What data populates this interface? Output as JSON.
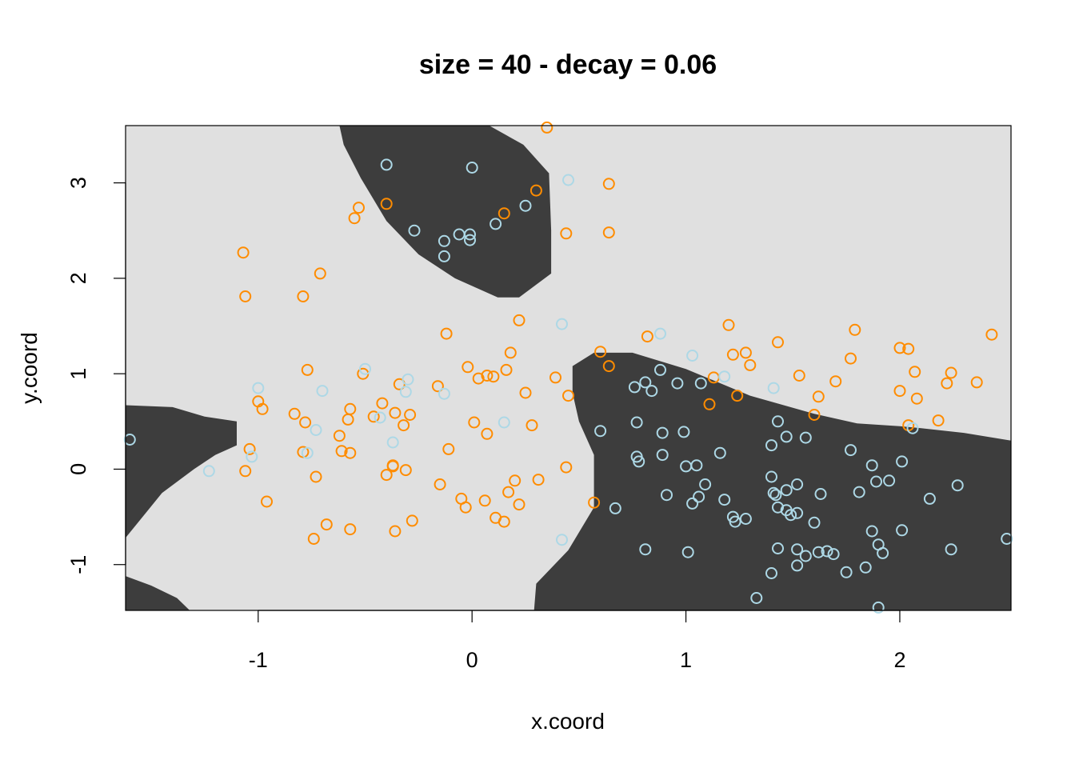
{
  "chart_data": {
    "type": "scatter",
    "title": "size = 40 - decay = 0.06",
    "xlabel": "x.coord",
    "ylabel": "y.coord",
    "xlim": [
      -1.62,
      2.52
    ],
    "ylim": [
      -1.48,
      3.6
    ],
    "xticks": [
      -1,
      0,
      1,
      2
    ],
    "yticks": [
      -1,
      0,
      1,
      2,
      3
    ],
    "xtick_labels": [
      "-1",
      "0",
      "1",
      "2"
    ],
    "ytick_labels": [
      "-1",
      "0",
      "1",
      "2",
      "3"
    ],
    "grid": false,
    "legend": "none",
    "colors": {
      "region_light": "#e0e0e0",
      "region_dark": "#3d3d3d",
      "points_orange": "#ff8c00",
      "points_blue": "#add8e6"
    },
    "regions": [
      {
        "color": "region_dark",
        "polygon": [
          [
            -0.62,
            3.6
          ],
          [
            -0.25,
            3.6
          ],
          [
            0.08,
            3.6
          ],
          [
            0.24,
            3.4
          ],
          [
            0.36,
            3.1
          ],
          [
            0.37,
            2.5
          ],
          [
            0.37,
            2.05
          ],
          [
            0.22,
            1.8
          ],
          [
            0.12,
            1.8
          ],
          [
            -0.08,
            2.0
          ],
          [
            -0.25,
            2.25
          ],
          [
            -0.4,
            2.6
          ],
          [
            -0.52,
            3.05
          ],
          [
            -0.6,
            3.4
          ]
        ]
      },
      {
        "color": "region_dark",
        "polygon": [
          [
            -1.62,
            0.67
          ],
          [
            -1.4,
            0.65
          ],
          [
            -1.25,
            0.55
          ],
          [
            -1.1,
            0.5
          ],
          [
            -1.1,
            0.25
          ],
          [
            -1.2,
            0.15
          ],
          [
            -1.3,
            0.0
          ],
          [
            -1.45,
            -0.25
          ],
          [
            -1.62,
            -0.72
          ]
        ]
      },
      {
        "color": "region_dark",
        "polygon": [
          [
            -1.62,
            -1.12
          ],
          [
            -1.5,
            -1.22
          ],
          [
            -1.38,
            -1.35
          ],
          [
            -1.32,
            -1.48
          ],
          [
            -1.62,
            -1.48
          ]
        ]
      },
      {
        "color": "region_dark",
        "polygon": [
          [
            0.47,
            1.08
          ],
          [
            0.57,
            1.22
          ],
          [
            0.75,
            1.22
          ],
          [
            1.0,
            1.05
          ],
          [
            1.3,
            0.77
          ],
          [
            1.6,
            0.58
          ],
          [
            1.8,
            0.48
          ],
          [
            2.0,
            0.45
          ],
          [
            2.1,
            0.43
          ],
          [
            2.3,
            0.38
          ],
          [
            2.52,
            0.3
          ],
          [
            2.52,
            -1.48
          ],
          [
            0.29,
            -1.48
          ],
          [
            0.3,
            -1.2
          ],
          [
            0.45,
            -0.85
          ],
          [
            0.57,
            -0.4
          ],
          [
            0.57,
            0.15
          ],
          [
            0.5,
            0.5
          ],
          [
            0.47,
            0.8
          ]
        ]
      }
    ],
    "series": [
      {
        "color": "points_orange",
        "points": [
          [
            0.35,
            3.58
          ],
          [
            0.3,
            2.92
          ],
          [
            0.64,
            2.99
          ],
          [
            0.15,
            2.68
          ],
          [
            0.44,
            2.47
          ],
          [
            0.64,
            2.48
          ],
          [
            -0.4,
            2.78
          ],
          [
            -0.53,
            2.74
          ],
          [
            -0.55,
            2.63
          ],
          [
            -1.07,
            2.27
          ],
          [
            -0.71,
            2.05
          ],
          [
            -1.06,
            1.81
          ],
          [
            -0.79,
            1.81
          ],
          [
            -0.12,
            1.42
          ],
          [
            0.22,
            1.56
          ],
          [
            0.82,
            1.39
          ],
          [
            1.2,
            1.51
          ],
          [
            1.79,
            1.46
          ],
          [
            2.43,
            1.41
          ],
          [
            1.43,
            1.33
          ],
          [
            0.6,
            1.23
          ],
          [
            0.18,
            1.22
          ],
          [
            1.22,
            1.2
          ],
          [
            1.28,
            1.22
          ],
          [
            1.3,
            1.09
          ],
          [
            0.64,
            1.08
          ],
          [
            1.77,
            1.16
          ],
          [
            2.0,
            1.27
          ],
          [
            2.04,
            1.26
          ],
          [
            -0.02,
            1.07
          ],
          [
            -0.77,
            1.04
          ],
          [
            -0.51,
            1.0
          ],
          [
            0.07,
            0.98
          ],
          [
            0.1,
            0.97
          ],
          [
            0.03,
            0.95
          ],
          [
            0.16,
            1.04
          ],
          [
            0.39,
            0.96
          ],
          [
            1.13,
            0.96
          ],
          [
            1.53,
            0.98
          ],
          [
            2.07,
            1.02
          ],
          [
            2.24,
            1.01
          ],
          [
            1.7,
            0.92
          ],
          [
            2.22,
            0.9
          ],
          [
            2.36,
            0.91
          ],
          [
            -0.34,
            0.89
          ],
          [
            -0.16,
            0.87
          ],
          [
            0.25,
            0.8
          ],
          [
            0.45,
            0.77
          ],
          [
            1.24,
            0.77
          ],
          [
            1.62,
            0.76
          ],
          [
            2.08,
            0.74
          ],
          [
            2.0,
            0.82
          ],
          [
            1.11,
            0.68
          ],
          [
            -1.0,
            0.71
          ],
          [
            -0.98,
            0.63
          ],
          [
            -0.83,
            0.58
          ],
          [
            -0.57,
            0.63
          ],
          [
            -0.42,
            0.69
          ],
          [
            -0.46,
            0.55
          ],
          [
            -0.36,
            0.59
          ],
          [
            -0.29,
            0.57
          ],
          [
            -0.32,
            0.46
          ],
          [
            -0.58,
            0.52
          ],
          [
            -0.78,
            0.49
          ],
          [
            0.01,
            0.49
          ],
          [
            0.07,
            0.37
          ],
          [
            0.28,
            0.46
          ],
          [
            1.6,
            0.57
          ],
          [
            2.04,
            0.46
          ],
          [
            2.18,
            0.51
          ],
          [
            -0.62,
            0.35
          ],
          [
            -1.04,
            0.21
          ],
          [
            -0.79,
            0.18
          ],
          [
            -0.61,
            0.19
          ],
          [
            -0.57,
            0.17
          ],
          [
            -0.11,
            0.21
          ],
          [
            -1.06,
            -0.02
          ],
          [
            -0.73,
            -0.08
          ],
          [
            -0.37,
            0.03
          ],
          [
            -0.37,
            0.04
          ],
          [
            -0.31,
            -0.01
          ],
          [
            -0.4,
            -0.06
          ],
          [
            0.44,
            0.02
          ],
          [
            -0.96,
            -0.34
          ],
          [
            -0.15,
            -0.16
          ],
          [
            0.2,
            -0.12
          ],
          [
            0.31,
            -0.11
          ],
          [
            0.17,
            -0.24
          ],
          [
            -0.05,
            -0.31
          ],
          [
            -0.03,
            -0.4
          ],
          [
            0.06,
            -0.33
          ],
          [
            0.22,
            -0.37
          ],
          [
            0.57,
            -0.35
          ],
          [
            0.11,
            -0.51
          ],
          [
            0.15,
            -0.55
          ],
          [
            -0.68,
            -0.58
          ],
          [
            -0.57,
            -0.63
          ],
          [
            -0.36,
            -0.65
          ],
          [
            -0.28,
            -0.54
          ],
          [
            -0.74,
            -0.73
          ]
        ]
      },
      {
        "color": "points_blue",
        "points": [
          [
            -0.4,
            3.19
          ],
          [
            0.0,
            3.16
          ],
          [
            0.45,
            3.03
          ],
          [
            -0.27,
            2.5
          ],
          [
            -0.13,
            2.39
          ],
          [
            -0.13,
            2.23
          ],
          [
            -0.06,
            2.46
          ],
          [
            -0.01,
            2.46
          ],
          [
            -0.01,
            2.4
          ],
          [
            0.11,
            2.57
          ],
          [
            0.25,
            2.76
          ],
          [
            0.42,
            1.52
          ],
          [
            0.88,
            1.42
          ],
          [
            1.03,
            1.19
          ],
          [
            1.18,
            0.97
          ],
          [
            1.07,
            0.9
          ],
          [
            0.96,
            0.9
          ],
          [
            0.81,
            0.91
          ],
          [
            0.84,
            0.82
          ],
          [
            0.76,
            0.86
          ],
          [
            0.88,
            1.04
          ],
          [
            1.41,
            0.85
          ],
          [
            -0.5,
            1.05
          ],
          [
            -0.3,
            0.94
          ],
          [
            -0.31,
            0.81
          ],
          [
            -0.13,
            0.79
          ],
          [
            -1.0,
            0.85
          ],
          [
            -0.7,
            0.82
          ],
          [
            -0.43,
            0.54
          ],
          [
            0.15,
            0.49
          ],
          [
            0.6,
            0.4
          ],
          [
            0.77,
            0.49
          ],
          [
            0.89,
            0.38
          ],
          [
            0.99,
            0.39
          ],
          [
            1.43,
            0.5
          ],
          [
            1.47,
            0.34
          ],
          [
            1.56,
            0.33
          ],
          [
            1.4,
            0.25
          ],
          [
            2.06,
            0.43
          ],
          [
            -0.73,
            0.41
          ],
          [
            -0.37,
            0.28
          ],
          [
            -1.6,
            0.31
          ],
          [
            -1.03,
            0.13
          ],
          [
            -0.77,
            0.17
          ],
          [
            -1.23,
            -0.02
          ],
          [
            0.77,
            0.13
          ],
          [
            0.78,
            0.08
          ],
          [
            0.89,
            0.15
          ],
          [
            1.0,
            0.03
          ],
          [
            1.05,
            0.04
          ],
          [
            1.16,
            0.17
          ],
          [
            1.77,
            0.2
          ],
          [
            1.87,
            0.04
          ],
          [
            2.01,
            0.08
          ],
          [
            1.4,
            -0.08
          ],
          [
            1.41,
            -0.25
          ],
          [
            1.42,
            -0.27
          ],
          [
            1.47,
            -0.22
          ],
          [
            1.52,
            -0.16
          ],
          [
            1.09,
            -0.16
          ],
          [
            1.06,
            -0.29
          ],
          [
            1.03,
            -0.36
          ],
          [
            0.91,
            -0.27
          ],
          [
            1.18,
            -0.32
          ],
          [
            1.43,
            -0.4
          ],
          [
            1.47,
            -0.43
          ],
          [
            1.49,
            -0.48
          ],
          [
            1.52,
            -0.46
          ],
          [
            1.63,
            -0.26
          ],
          [
            1.81,
            -0.24
          ],
          [
            1.89,
            -0.13
          ],
          [
            1.95,
            -0.12
          ],
          [
            2.14,
            -0.31
          ],
          [
            2.27,
            -0.17
          ],
          [
            1.22,
            -0.5
          ],
          [
            1.23,
            -0.55
          ],
          [
            1.28,
            -0.52
          ],
          [
            1.6,
            -0.56
          ],
          [
            0.67,
            -0.41
          ],
          [
            1.87,
            -0.65
          ],
          [
            2.01,
            -0.64
          ],
          [
            0.42,
            -0.74
          ],
          [
            0.81,
            -0.84
          ],
          [
            1.01,
            -0.87
          ],
          [
            1.43,
            -0.83
          ],
          [
            1.52,
            -0.84
          ],
          [
            1.56,
            -0.91
          ],
          [
            1.62,
            -0.87
          ],
          [
            1.66,
            -0.86
          ],
          [
            1.69,
            -0.89
          ],
          [
            1.9,
            -0.79
          ],
          [
            1.92,
            -0.88
          ],
          [
            2.24,
            -0.84
          ],
          [
            2.5,
            -0.73
          ],
          [
            1.52,
            -1.01
          ],
          [
            1.75,
            -1.08
          ],
          [
            1.84,
            -1.03
          ],
          [
            1.4,
            -1.09
          ],
          [
            1.33,
            -1.35
          ],
          [
            1.9,
            -1.45
          ]
        ]
      }
    ]
  }
}
